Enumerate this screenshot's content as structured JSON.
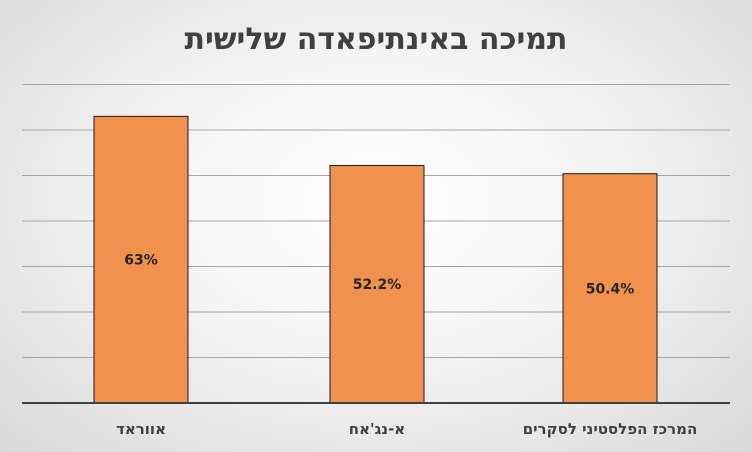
{
  "chart_data": {
    "type": "bar",
    "title": "תמיכה באינתיפאדה שלישית",
    "xlabel": "",
    "ylabel": "",
    "categories": [
      "אווראד",
      "א-נג'אח",
      "המרכז הפלסטיני לסקרים"
    ],
    "values": [
      63,
      52.2,
      50.4
    ],
    "data_labels": [
      "63%",
      "52.2%",
      "50.4%"
    ],
    "ylim": [
      0,
      70
    ],
    "grid": true,
    "legend": "none",
    "colors": {
      "bar_fill": "#f0914d",
      "bar_stroke": "#1a1a1a",
      "grid": "#a6a6a6",
      "axis": "#404040"
    }
  }
}
